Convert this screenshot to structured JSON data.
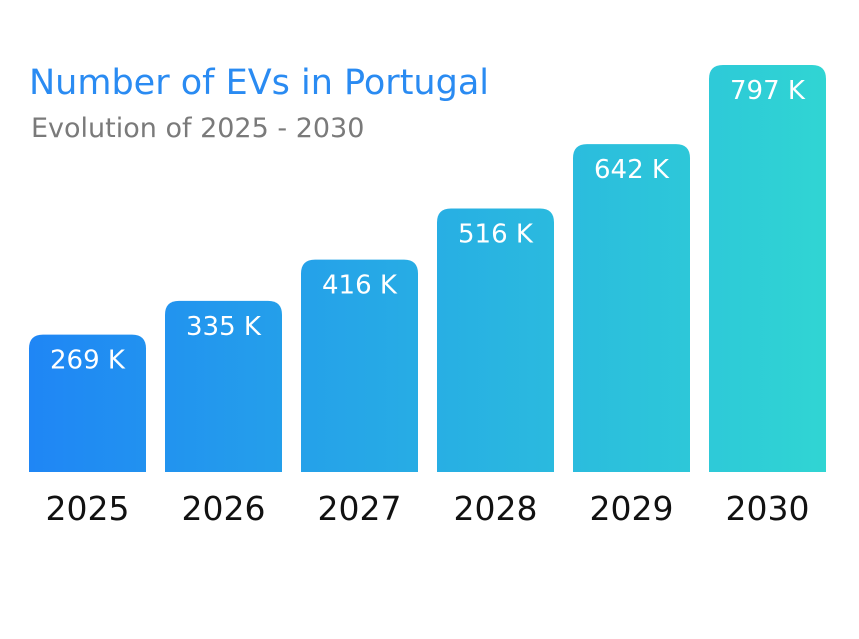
{
  "chart_data": {
    "type": "bar",
    "title": "Number of EVs in Portugal",
    "subtitle": "Evolution of 2025 - 2030",
    "categories": [
      "2025",
      "2026",
      "2027",
      "2028",
      "2029",
      "2030"
    ],
    "values": [
      269,
      335,
      416,
      516,
      642,
      797
    ],
    "value_labels": [
      "269 K",
      "335 K",
      "416 K",
      "516 K",
      "642 K",
      "797 K"
    ],
    "unit": "K",
    "ylim": [
      0,
      797
    ],
    "grid": false,
    "legend": "none"
  },
  "colors": {
    "title": "#2a8bf2",
    "subtitle": "#7a7a7a",
    "gradient_start": "#1f86f5",
    "gradient_end": "#30d5d3",
    "value_label": "#ffffff",
    "category_label": "#111111"
  }
}
